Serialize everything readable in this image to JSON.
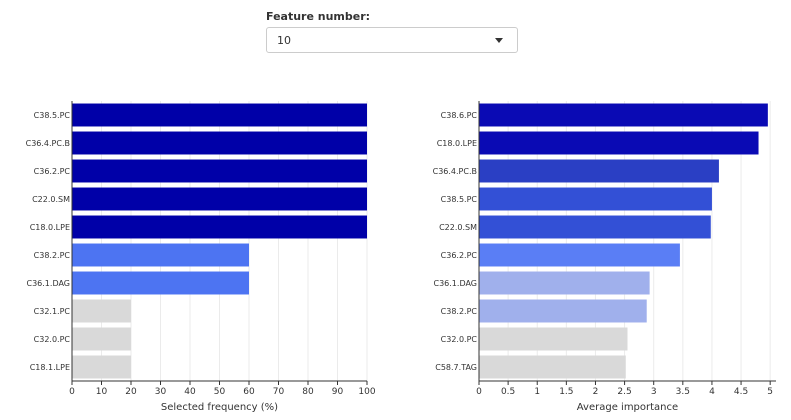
{
  "control": {
    "label": "Feature number:",
    "selected": "10"
  },
  "chart_data": [
    {
      "type": "bar",
      "orientation": "horizontal",
      "xlabel": "Selected frequency (%)",
      "xlim": [
        0,
        100
      ],
      "xticks": [
        "0",
        "10",
        "20",
        "30",
        "40",
        "50",
        "60",
        "70",
        "80",
        "90",
        "100"
      ],
      "categories": [
        "C38.5.PC",
        "C36.4.PC.B",
        "C36.2.PC",
        "C22.0.SM",
        "C18.0.LPE",
        "C38.2.PC",
        "C36.1.DAG",
        "C32.1.PC",
        "C32.0.PC",
        "C18.1.LPE"
      ],
      "values": [
        100,
        100,
        100,
        100,
        100,
        60,
        60,
        20,
        20,
        20
      ],
      "colors": [
        "#0000a8",
        "#0000a8",
        "#0000a8",
        "#0000a8",
        "#0000a8",
        "#4d74f2",
        "#4d74f2",
        "#d9d9d9",
        "#d9d9d9",
        "#d9d9d9"
      ],
      "grid": "vertical"
    },
    {
      "type": "bar",
      "orientation": "horizontal",
      "xlabel": "Average importance",
      "xlim": [
        0,
        5.1
      ],
      "xticks": [
        "0",
        "0.5",
        "1",
        "1.5",
        "2",
        "2.5",
        "3",
        "3.5",
        "4",
        "4.5",
        "5"
      ],
      "categories": [
        "C38.6.PC",
        "C18.0.LPE",
        "C36.4.PC.B",
        "C38.5.PC",
        "C22.0.SM",
        "C36.2.PC",
        "C36.1.DAG",
        "C38.2.PC",
        "C32.0.PC",
        "C58.7.TAG"
      ],
      "values": [
        4.96,
        4.8,
        4.12,
        4.0,
        3.98,
        3.45,
        2.93,
        2.88,
        2.55,
        2.52
      ],
      "colors": [
        "#0a0ab4",
        "#0a0ab4",
        "#2a3fc4",
        "#3350d6",
        "#3350d6",
        "#5a7ef5",
        "#a0b0ec",
        "#a0b0ec",
        "#d9d9d9",
        "#d9d9d9"
      ],
      "grid": "vertical"
    }
  ]
}
